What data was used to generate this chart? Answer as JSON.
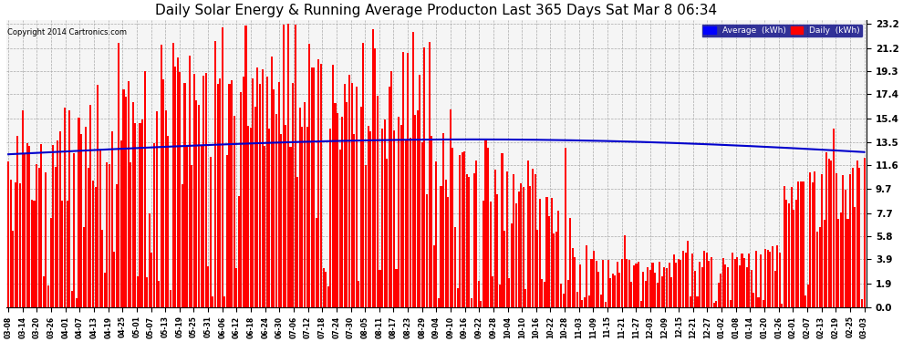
{
  "title": "Daily Solar Energy & Running Average Producton Last 365 Days Sat Mar 8 06:34",
  "copyright_text": "Copyright 2014 Cartronics.com",
  "yticks": [
    0.0,
    1.9,
    3.9,
    5.8,
    7.7,
    9.7,
    11.6,
    13.5,
    15.4,
    17.4,
    19.3,
    21.2,
    23.2
  ],
  "ymax": 23.5,
  "ymin": 0.0,
  "bar_color": "#ff0000",
  "avg_color": "#0000cc",
  "background_color": "#ffffff",
  "plot_bg_color": "#f5f5f5",
  "grid_color": "#aaaaaa",
  "legend_avg_color": "#0000ff",
  "legend_daily_color": "#ff0000",
  "title_fontsize": 11,
  "xtick_labels": [
    "03-08",
    "03-14",
    "03-20",
    "03-26",
    "04-01",
    "04-07",
    "04-13",
    "04-19",
    "04-25",
    "05-01",
    "05-07",
    "05-13",
    "05-19",
    "05-25",
    "05-31",
    "06-06",
    "06-12",
    "06-18",
    "06-24",
    "06-30",
    "07-06",
    "07-12",
    "07-18",
    "07-24",
    "07-30",
    "08-05",
    "08-11",
    "08-17",
    "08-23",
    "08-29",
    "09-04",
    "09-10",
    "09-16",
    "09-22",
    "09-28",
    "10-04",
    "10-10",
    "10-16",
    "10-22",
    "10-28",
    "11-03",
    "11-09",
    "11-15",
    "11-21",
    "11-27",
    "12-03",
    "12-09",
    "12-15",
    "12-21",
    "12-27",
    "01-02",
    "01-08",
    "01-14",
    "01-20",
    "01-26",
    "02-01",
    "02-07",
    "02-13",
    "02-19",
    "02-25",
    "03-03"
  ]
}
